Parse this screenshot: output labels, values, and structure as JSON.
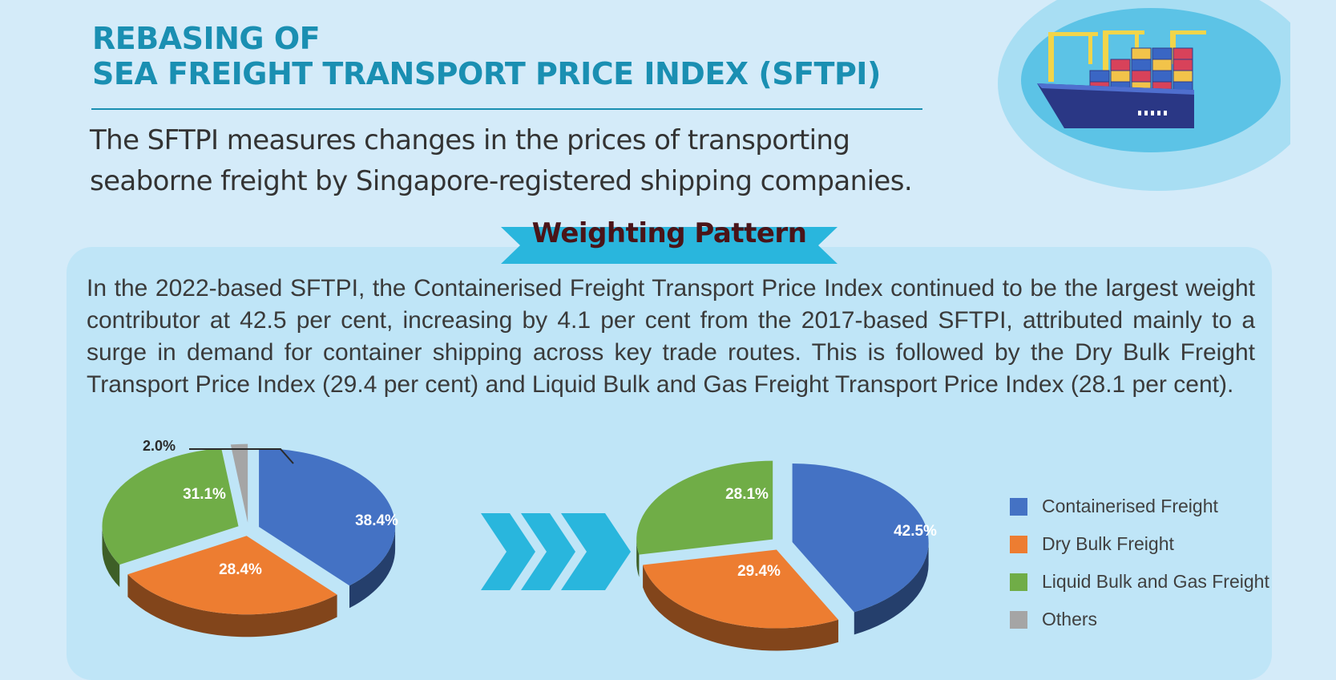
{
  "header": {
    "title_line1": "REBASING OF",
    "title_line2": "SEA FREIGHT TRANSPORT PRICE INDEX (SFTPI)",
    "subtitle": "The SFTPI measures changes in the prices of transporting seaborne freight by Singapore-registered shipping companies."
  },
  "section": {
    "heading": "Weighting Pattern",
    "body": "In the 2022-based SFTPI, the Containerised Freight Transport Price Index continued to be the largest weight contributor at 42.5 per cent, increasing by 4.1 per cent from the 2017-based SFTPI, attributed mainly to a surge in demand for container shipping across key trade routes. This is followed by the Dry Bulk Freight Transport Price Index (29.4 per cent) and Liquid Bulk and Gas Freight Transport Price Index (28.1 per cent)."
  },
  "colors": {
    "containerised": "#4472c4",
    "dry_bulk": "#ed7d31",
    "liquid_bulk": "#70ad47",
    "others": "#a5a5a5",
    "accent": "#1a8fb2",
    "arrow": "#29b6dd"
  },
  "icons": {
    "ship": "container-ship-icon",
    "transition": "chevron-arrows-icon"
  },
  "chart_data": [
    {
      "type": "pie",
      "slices": [
        {
          "name": "Containerised Freight",
          "value": 38.4,
          "label": "38.4%",
          "color_key": "containerised"
        },
        {
          "name": "Dry Bulk Freight",
          "value": 28.4,
          "label": "28.4%",
          "color_key": "dry_bulk"
        },
        {
          "name": "Liquid Bulk and Gas Freight",
          "value": 31.1,
          "label": "31.1%",
          "color_key": "liquid_bulk"
        },
        {
          "name": "Others",
          "value": 2.0,
          "label": "2.0%",
          "color_key": "others",
          "callout": true
        }
      ]
    },
    {
      "type": "pie",
      "slices": [
        {
          "name": "Containerised Freight",
          "value": 42.5,
          "label": "42.5%",
          "color_key": "containerised"
        },
        {
          "name": "Dry Bulk Freight",
          "value": 29.4,
          "label": "29.4%",
          "color_key": "dry_bulk"
        },
        {
          "name": "Liquid Bulk and Gas Freight",
          "value": 28.1,
          "label": "28.1%",
          "color_key": "liquid_bulk"
        }
      ]
    }
  ],
  "legend": {
    "items": [
      {
        "label": "Containerised Freight",
        "color_key": "containerised"
      },
      {
        "label": "Dry Bulk Freight",
        "color_key": "dry_bulk"
      },
      {
        "label": "Liquid Bulk and Gas Freight",
        "color_key": "liquid_bulk"
      },
      {
        "label": "Others",
        "color_key": "others"
      }
    ]
  }
}
